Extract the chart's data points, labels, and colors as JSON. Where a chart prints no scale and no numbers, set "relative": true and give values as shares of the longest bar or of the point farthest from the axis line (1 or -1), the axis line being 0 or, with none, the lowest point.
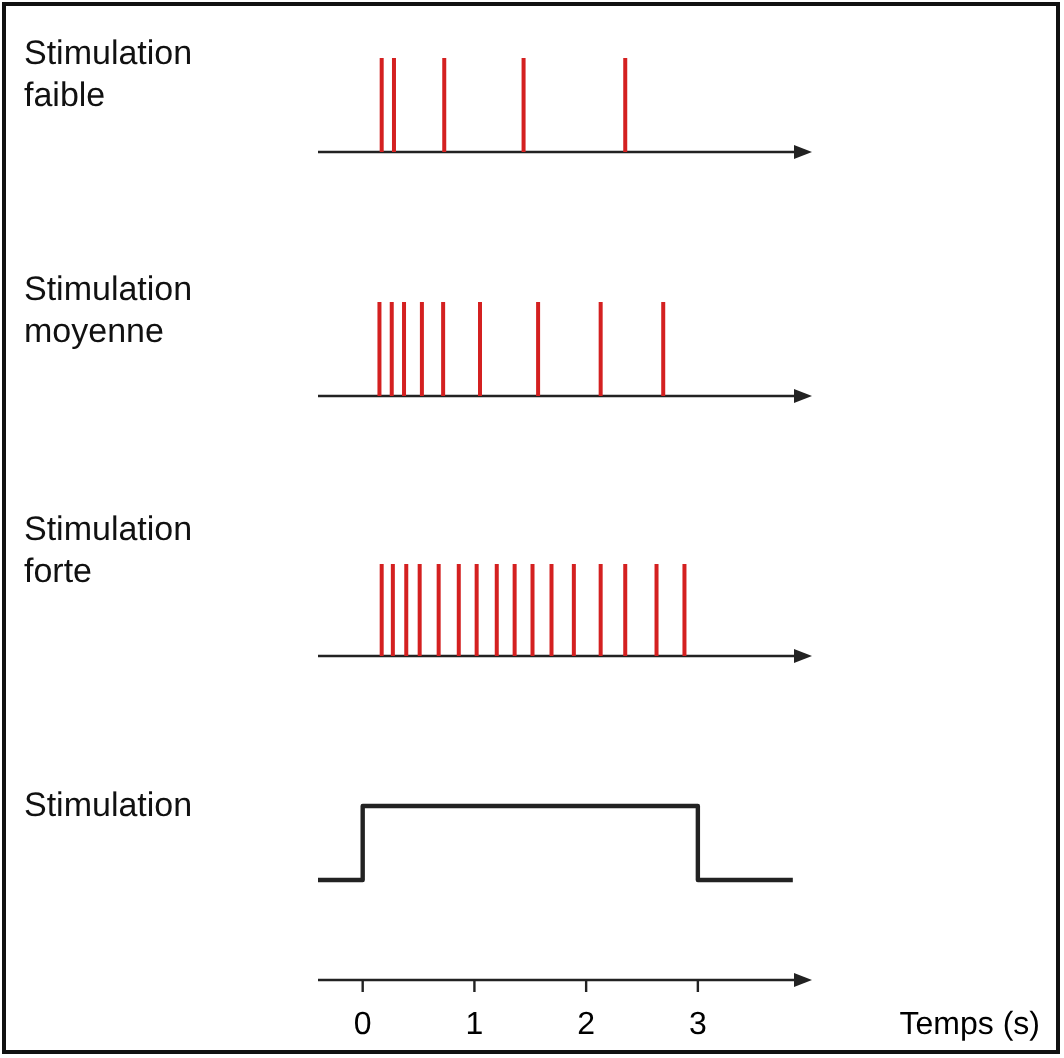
{
  "chart_data": [
    {
      "type": "bar",
      "title": "Stimulation faible",
      "relative": true,
      "xlim": [
        -0.4,
        3.95
      ],
      "color": "#d42020",
      "x": [
        0.17,
        0.28,
        0.73,
        1.44,
        2.35
      ],
      "values": [
        1,
        1,
        1,
        1,
        1
      ]
    },
    {
      "type": "bar",
      "title": "Stimulation moyenne",
      "relative": true,
      "xlim": [
        -0.4,
        3.95
      ],
      "color": "#d42020",
      "x": [
        0.15,
        0.26,
        0.37,
        0.53,
        0.72,
        1.05,
        1.57,
        2.13,
        2.69
      ],
      "values": [
        1,
        1,
        1,
        1,
        1,
        1,
        1,
        1,
        1
      ]
    },
    {
      "type": "bar",
      "title": "Stimulation forte",
      "relative": true,
      "xlim": [
        -0.4,
        3.95
      ],
      "color": "#d42020",
      "x": [
        0.17,
        0.27,
        0.39,
        0.51,
        0.68,
        0.86,
        1.02,
        1.2,
        1.36,
        1.52,
        1.69,
        1.89,
        2.13,
        2.35,
        2.63,
        2.88
      ],
      "values": [
        1,
        1,
        1,
        1,
        1,
        1,
        1,
        1,
        1,
        1,
        1,
        1,
        1,
        1,
        1,
        1
      ]
    },
    {
      "type": "step",
      "title": "Stimulation",
      "relative": true,
      "xlim": [
        -0.4,
        3.95
      ],
      "xticks": [
        0,
        1,
        2,
        3
      ],
      "xlabel": "Temps (s)",
      "color": "#222222",
      "x": [
        -0.4,
        0,
        3,
        3.85
      ],
      "values": [
        0,
        1,
        0,
        0
      ]
    }
  ]
}
